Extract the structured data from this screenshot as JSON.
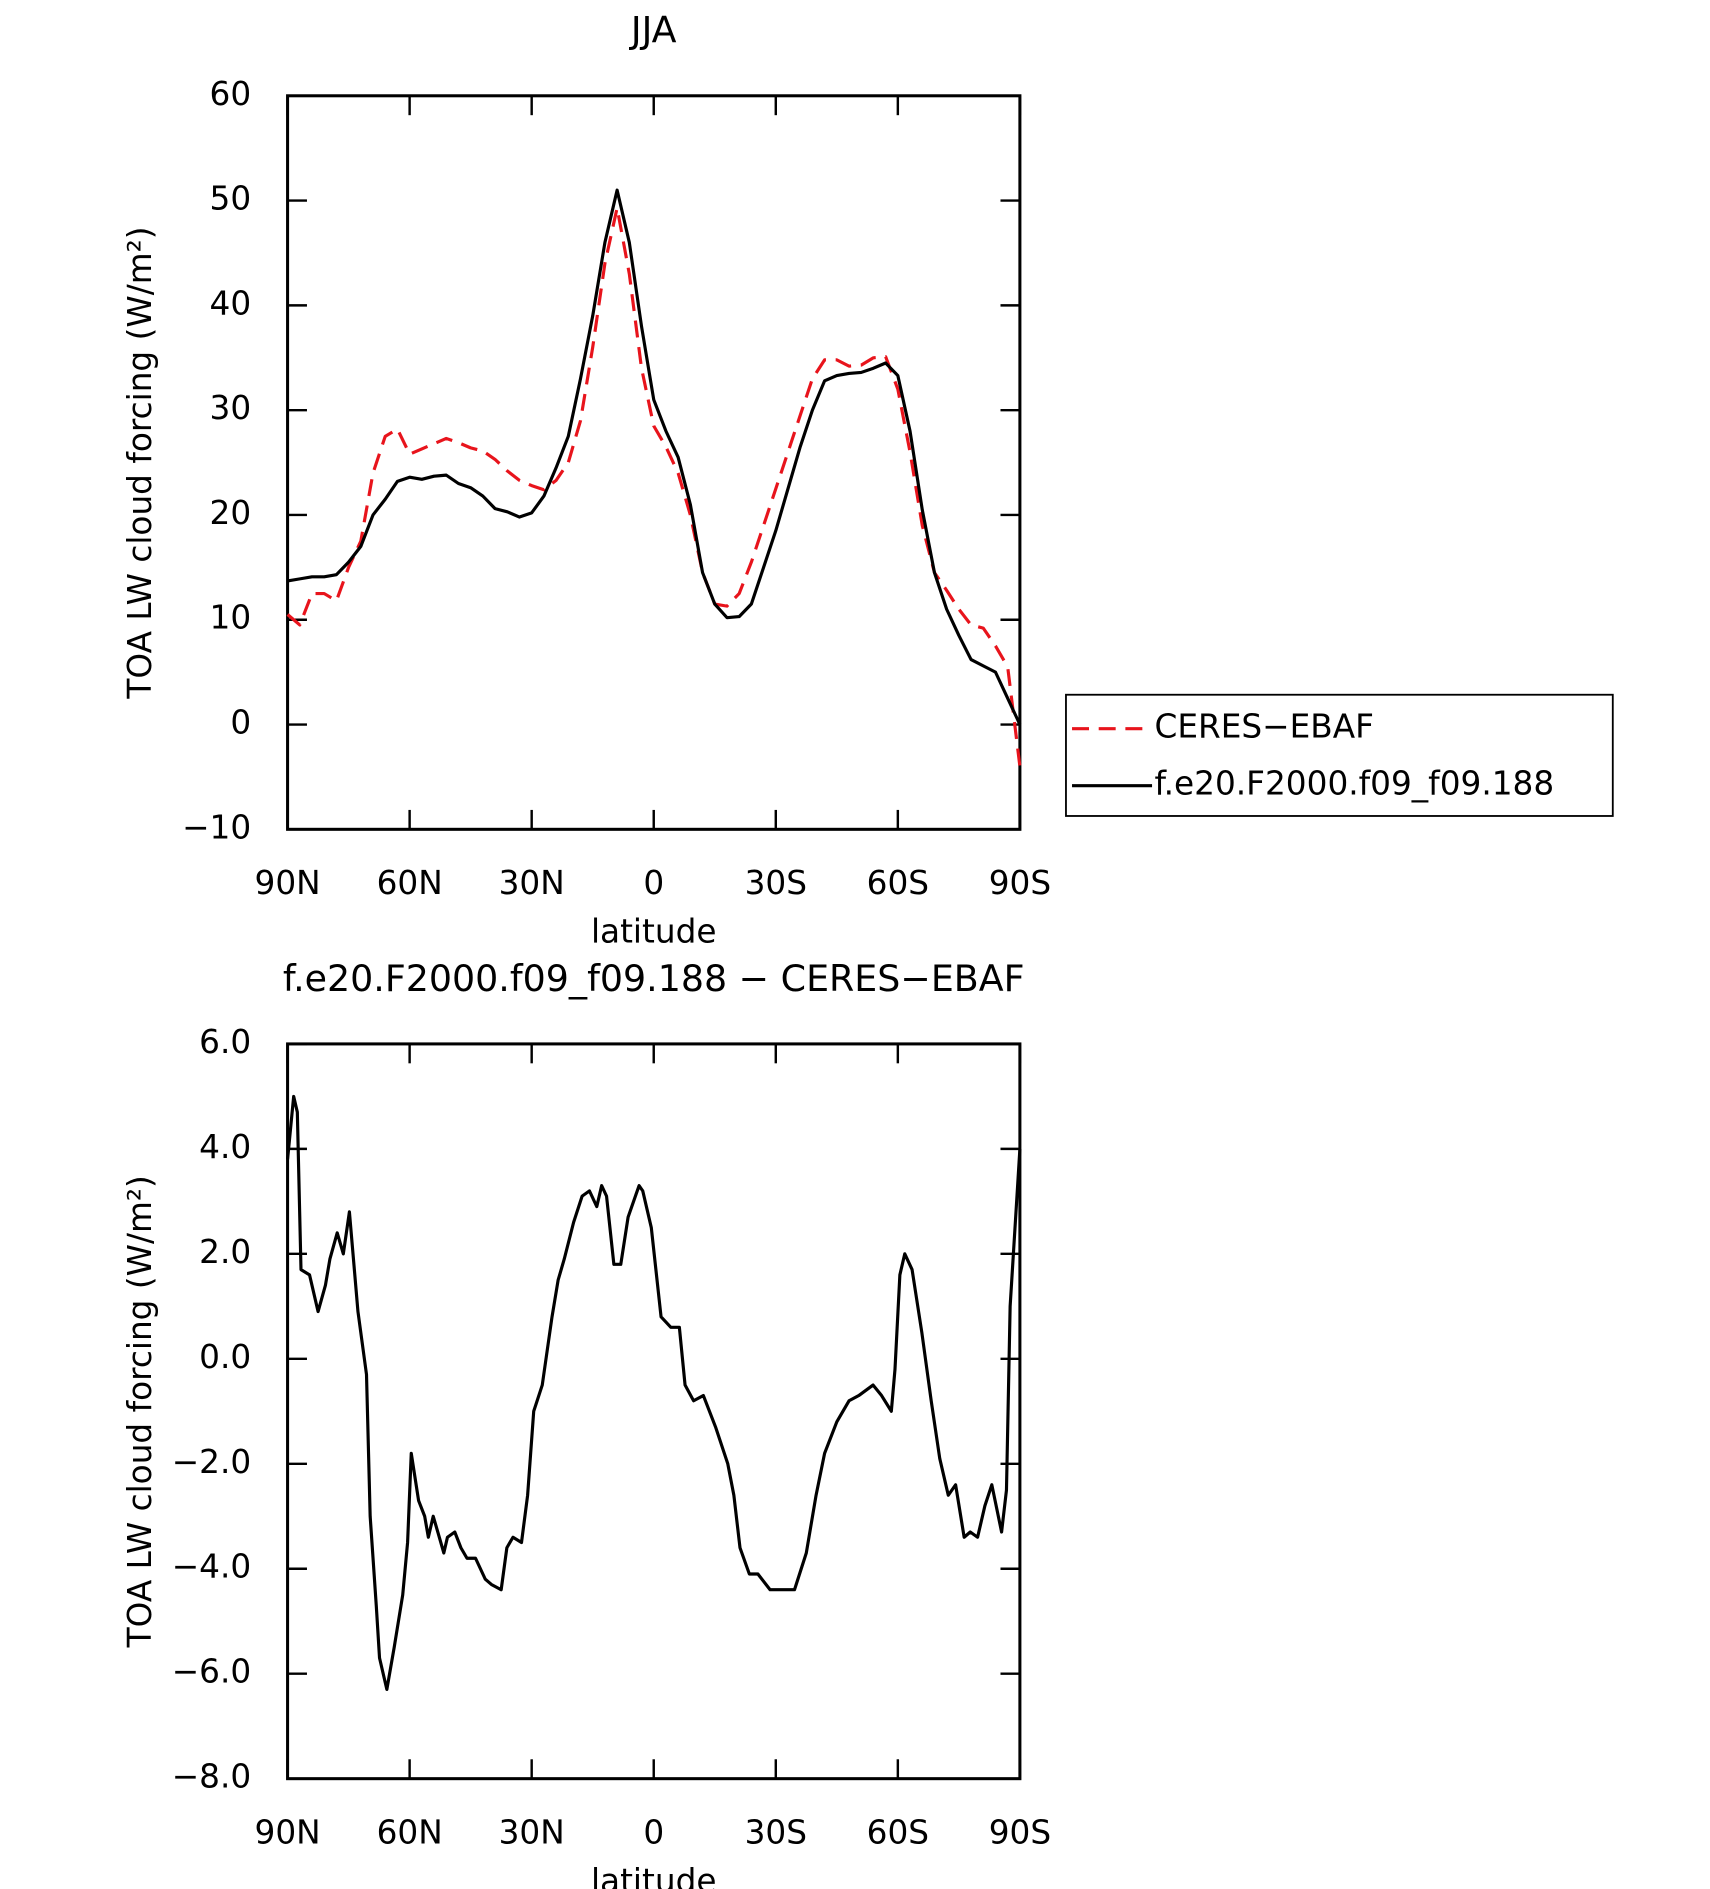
{
  "chart_data": [
    {
      "type": "line",
      "title": "JJA",
      "xlabel": "latitude",
      "ylabel": "TOA LW cloud forcing (W/m²)",
      "x": [
        90,
        87,
        84,
        81,
        78,
        75,
        72,
        69,
        66,
        63,
        60,
        57,
        54,
        51,
        48,
        45,
        42,
        39,
        36,
        33,
        30,
        27,
        24,
        21,
        18,
        15,
        12,
        9,
        6,
        3,
        0,
        -3,
        -6,
        -9,
        -12,
        -15,
        -18,
        -21,
        -24,
        -27,
        -30,
        -33,
        -36,
        -39,
        -42,
        -45,
        -48,
        -51,
        -54,
        -57,
        -60,
        -63,
        -66,
        -69,
        -72,
        -75,
        -78,
        -81,
        -84,
        -87,
        -90
      ],
      "xlim": [
        90,
        -90
      ],
      "xticks": [
        {
          "value": 90,
          "label": "90N"
        },
        {
          "value": 60,
          "label": "60N"
        },
        {
          "value": 30,
          "label": "30N"
        },
        0,
        {
          "value": -30,
          "label": "30S"
        },
        {
          "value": -60,
          "label": "60S"
        },
        {
          "value": -90,
          "label": "90S"
        }
      ],
      "ylim": [
        -10,
        60
      ],
      "yticks": [
        {
          "value": -10,
          "label": "−10"
        },
        0,
        10,
        20,
        30,
        40,
        50,
        60
      ],
      "legend": "right",
      "series": [
        {
          "name": "CERES−EBAF",
          "color": "#e8141c",
          "dashed": true,
          "values": [
            10.5,
            9.5,
            12.5,
            12.5,
            11.8,
            15,
            17.5,
            24,
            27.5,
            28.2,
            25.8,
            26.3,
            26.8,
            27.3,
            26.9,
            26.4,
            26.1,
            25.3,
            24.2,
            23.3,
            22.8,
            22.4,
            23.3,
            25,
            29,
            36,
            44,
            49.3,
            43,
            34,
            28.5,
            26.5,
            24,
            20,
            14.5,
            11.5,
            11.3,
            12.5,
            15.5,
            19,
            22.5,
            26,
            29.5,
            33,
            34.8,
            34.8,
            34.2,
            34.3,
            35,
            35.1,
            32,
            26,
            19,
            14.5,
            12.8,
            11,
            9.5,
            9.2,
            7.5,
            5.5,
            -4
          ]
        },
        {
          "name": "f.e20.F2000.f09_f09.188",
          "color": "#000000",
          "dashed": false,
          "values": [
            13.7,
            13.9,
            14.1,
            14.1,
            14.3,
            15.5,
            17,
            20,
            21.5,
            23.2,
            23.6,
            23.4,
            23.7,
            23.8,
            23,
            22.6,
            21.8,
            20.6,
            20.3,
            19.8,
            20.2,
            21.8,
            24.5,
            27.5,
            33,
            39,
            46,
            51,
            46,
            38,
            31,
            28,
            25.5,
            21,
            14.5,
            11.5,
            10.2,
            10.3,
            11.5,
            15,
            18.5,
            22.5,
            26.5,
            30,
            32.8,
            33.3,
            33.5,
            33.6,
            34,
            34.5,
            33.3,
            28,
            20.5,
            14.5,
            11,
            8.5,
            6.2,
            5.6,
            5,
            2.5,
            0
          ]
        }
      ]
    },
    {
      "type": "line",
      "title": "f.e20.F2000.f09_f09.188 − CERES−EBAF",
      "xlabel": "latitude",
      "ylabel": "TOA LW cloud forcing (W/m²)",
      "x": [
        90,
        88.5,
        87.6,
        86.7,
        84.6,
        82.5,
        80.7,
        79.6,
        77.8,
        76.3,
        74.8,
        72.7,
        70.6,
        69.7,
        68.2,
        67.4,
        65.6,
        63.8,
        61.7,
        60.5,
        59.6,
        57.8,
        56.3,
        55.4,
        54.2,
        52.7,
        51.6,
        50.7,
        48.9,
        47.4,
        45.9,
        43.8,
        41.4,
        39.9,
        37.5,
        36.1,
        34.6,
        32.5,
        31,
        29.5,
        27.4,
        25,
        23.5,
        22,
        19.7,
        17.6,
        15.8,
        14,
        12.8,
        11.6,
        9.8,
        8.1,
        6.3,
        3.6,
        2.7,
        0.6,
        -1.8,
        -4.2,
        -6.3,
        -7.7,
        -9.8,
        -12.2,
        -15.2,
        -18.2,
        -19.7,
        -21.2,
        -23.5,
        -25.6,
        -28.6,
        -31.6,
        -34.6,
        -37.5,
        -39.9,
        -42,
        -45,
        -48,
        -50.4,
        -53.9,
        -56,
        -58.4,
        -59.3,
        -60.5,
        -61.7,
        -63.5,
        -65.9,
        -68.2,
        -70.3,
        -72.4,
        -74.2,
        -76.3,
        -77.8,
        -79.6,
        -81.4,
        -83.1,
        -85.5,
        -86.7,
        -87.6,
        -90
      ],
      "values": [
        3.8,
        5.0,
        4.7,
        1.7,
        1.6,
        0.9,
        1.4,
        1.9,
        2.4,
        2.0,
        2.8,
        0.9,
        -0.3,
        -3,
        -4.7,
        -5.7,
        -6.3,
        -5.5,
        -4.5,
        -3.5,
        -1.8,
        -2.7,
        -3.0,
        -3.4,
        -3.0,
        -3.4,
        -3.7,
        -3.4,
        -3.3,
        -3.6,
        -3.8,
        -3.8,
        -4.2,
        -4.3,
        -4.4,
        -3.6,
        -3.4,
        -3.5,
        -2.6,
        -1.0,
        -0.5,
        0.8,
        1.5,
        1.9,
        2.6,
        3.1,
        3.2,
        2.9,
        3.3,
        3.1,
        1.8,
        1.8,
        2.7,
        3.3,
        3.2,
        2.5,
        0.8,
        0.6,
        0.6,
        -0.5,
        -0.8,
        -0.7,
        -1.3,
        -2.0,
        -2.6,
        -3.6,
        -4.1,
        -4.1,
        -4.4,
        -4.4,
        -4.4,
        -3.7,
        -2.6,
        -1.8,
        -1.2,
        -0.8,
        -0.7,
        -0.5,
        -0.7,
        -1.0,
        -0.2,
        1.6,
        2.0,
        1.7,
        0.5,
        -0.8,
        -1.9,
        -2.6,
        -2.4,
        -3.4,
        -3.3,
        -3.4,
        -2.8,
        -2.4,
        -3.3,
        -2.5,
        1.0,
        4.0
      ],
      "color": "#000000",
      "xlim": [
        90,
        -90
      ],
      "xticks": [
        {
          "value": 90,
          "label": "90N"
        },
        {
          "value": 60,
          "label": "60N"
        },
        {
          "value": 30,
          "label": "30N"
        },
        0,
        {
          "value": -30,
          "label": "30S"
        },
        {
          "value": -60,
          "label": "60S"
        },
        {
          "value": -90,
          "label": "90S"
        }
      ],
      "ylim": [
        -8,
        6
      ],
      "yticks": [
        {
          "value": -8,
          "label": "−8.0"
        },
        {
          "value": -6,
          "label": "−6.0"
        },
        {
          "value": -4,
          "label": "−4.0"
        },
        {
          "value": -2,
          "label": "−2.0"
        },
        {
          "value": 0,
          "label": "0.0"
        },
        {
          "value": 2,
          "label": "2.0"
        },
        {
          "value": 4,
          "label": "4.0"
        },
        {
          "value": 6,
          "label": "6.0"
        }
      ]
    }
  ]
}
